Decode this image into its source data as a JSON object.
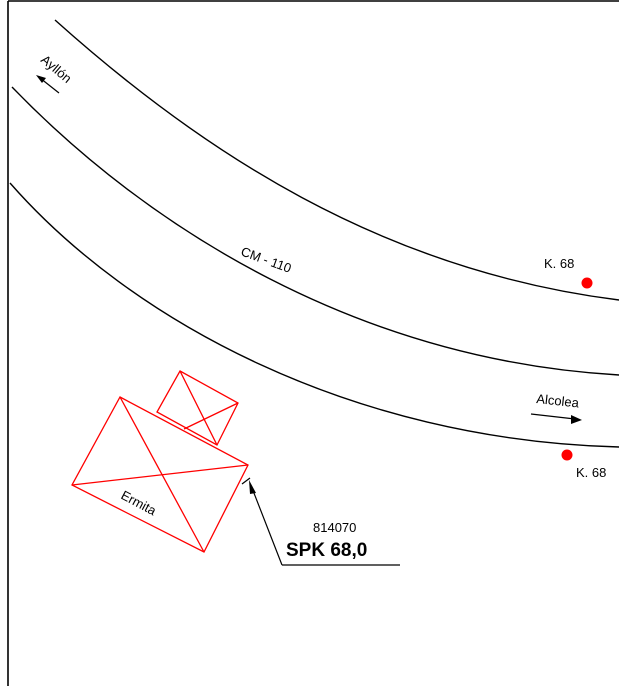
{
  "map": {
    "road_name": "CM - 110",
    "directions": {
      "west": "Ayllón",
      "east": "Alcolea"
    },
    "km_markers": [
      {
        "label": "K. 68",
        "color": "#ff0000"
      },
      {
        "label": "K. 68",
        "color": "#ff0000"
      }
    ],
    "building": {
      "label": "Ermita",
      "color": "#ff0000"
    },
    "survey_point": {
      "code": "814070",
      "label": "SPK 68,0"
    }
  },
  "colors": {
    "road": "#000000",
    "building": "#ff0000",
    "marker": "#ff0000",
    "frame": "#000000"
  }
}
